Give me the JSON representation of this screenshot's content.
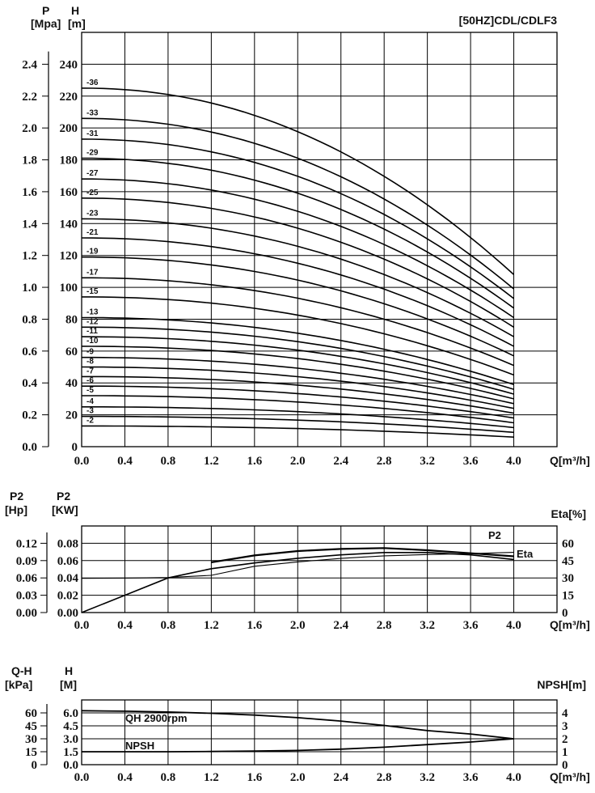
{
  "chart_data": [
    {
      "type": "line",
      "title": "[50HZ]CDL/CDLF3",
      "x_title": "Q[m³/h]",
      "y_titles": {
        "P": "P",
        "P_unit": "[Mpa]",
        "H": "H",
        "H_unit": "[m]"
      },
      "x_ticks": [
        "0.0",
        "0.4",
        "0.8",
        "1.2",
        "1.6",
        "2.0",
        "2.4",
        "2.8",
        "3.2",
        "3.6",
        "4.0"
      ],
      "H_ticks": [
        "0",
        "20",
        "40",
        "60",
        "80",
        "100",
        "120",
        "140",
        "160",
        "180",
        "200",
        "220",
        "240"
      ],
      "P_ticks": [
        "0.0",
        "0.2",
        "0.4",
        "0.6",
        "0.8",
        "1.0",
        "1.2",
        "1.4",
        "1.6",
        "1.8",
        "2.0",
        "2.2",
        "2.4"
      ],
      "xlim": [
        0,
        4.4
      ],
      "ylim": [
        0,
        260
      ],
      "grid": true,
      "stage_shutoff_head": {
        "36": 225,
        "33": 206,
        "31": 193,
        "29": 181,
        "27": 168,
        "25": 156,
        "23": 143,
        "21": 131,
        "19": 119,
        "17": 106,
        "15": 94,
        "13": 81,
        "12": 75,
        "11": 69,
        "10": 63,
        "9": 56,
        "8": 50,
        "7": 44,
        "6": 38,
        "5": 32,
        "4": 25,
        "3": 19,
        "2": 13
      },
      "stage_end_head": {
        "36": 108,
        "33": 99,
        "31": 93,
        "29": 87,
        "27": 81,
        "25": 75,
        "23": 69,
        "21": 63,
        "19": 57,
        "17": 51,
        "15": 45,
        "13": 39,
        "12": 36,
        "11": 33,
        "10": 30,
        "9": 27,
        "8": 24,
        "7": 21,
        "6": 18,
        "5": 15,
        "4": 12,
        "3": 9,
        "2": 6
      },
      "series": [
        {
          "name": "-36",
          "stages": 36
        },
        {
          "name": "-33",
          "stages": 33
        },
        {
          "name": "-31",
          "stages": 31
        },
        {
          "name": "-29",
          "stages": 29
        },
        {
          "name": "-27",
          "stages": 27
        },
        {
          "name": "-25",
          "stages": 25
        },
        {
          "name": "-23",
          "stages": 23
        },
        {
          "name": "-21",
          "stages": 21
        },
        {
          "name": "-19",
          "stages": 19
        },
        {
          "name": "-17",
          "stages": 17
        },
        {
          "name": "-15",
          "stages": 15
        },
        {
          "name": "-13",
          "stages": 13
        },
        {
          "name": "-12",
          "stages": 12
        },
        {
          "name": "-11",
          "stages": 11
        },
        {
          "name": "-10",
          "stages": 10
        },
        {
          "name": "-9",
          "stages": 9
        },
        {
          "name": "-8",
          "stages": 8
        },
        {
          "name": "-7",
          "stages": 7
        },
        {
          "name": "-6",
          "stages": 6
        },
        {
          "name": "-5",
          "stages": 5
        },
        {
          "name": "-4",
          "stages": 4
        },
        {
          "name": "-3",
          "stages": 3
        },
        {
          "name": "-2",
          "stages": 2
        }
      ]
    },
    {
      "type": "line",
      "x_title": "Q[m³/h]",
      "y_titles": {
        "P2a": "P2",
        "P2a_unit": "[Hp]",
        "P2b": "P2",
        "P2b_unit": "[KW]",
        "Eta": "Eta[%]"
      },
      "x_ticks": [
        "0.0",
        "0.4",
        "0.8",
        "1.2",
        "1.6",
        "2.0",
        "2.4",
        "2.8",
        "3.2",
        "3.6",
        "4.0"
      ],
      "Hp_ticks": [
        "0.00",
        "0.03",
        "0.06",
        "0.09",
        "0.12"
      ],
      "KW_ticks": [
        "0.00",
        "0.02",
        "0.04",
        "0.06",
        "0.08"
      ],
      "Eta_ticks": [
        "0",
        "15",
        "30",
        "45",
        "60"
      ],
      "grid": true,
      "series": [
        {
          "name": "P2",
          "unit": "KW",
          "x": [
            0.0,
            0.4,
            0.8,
            1.2,
            1.6,
            2.0,
            2.4,
            2.8,
            3.2,
            3.6,
            4.0
          ],
          "y": [
            0.0395,
            0.0398,
            0.0405,
            0.043,
            0.0535,
            0.0585,
            0.0625,
            0.0655,
            0.067,
            0.068,
            0.0695
          ]
        },
        {
          "name": "P2-high-band",
          "unit": "KW",
          "x": [
            1.2,
            1.6,
            2.0,
            2.4,
            2.8,
            3.2,
            3.6,
            4.0
          ],
          "y": [
            0.058,
            0.066,
            0.071,
            0.0735,
            0.0745,
            0.072,
            0.0685,
            0.065
          ]
        },
        {
          "name": "Eta",
          "unit": "%",
          "x": [
            0.0,
            0.4,
            0.8,
            1.2,
            1.6,
            2.0,
            2.4,
            2.8,
            3.2,
            3.6,
            4.0
          ],
          "y": [
            0,
            15,
            30,
            38,
            43,
            47,
            50,
            52,
            52,
            50,
            46
          ]
        }
      ],
      "labels": [
        "P2",
        "Eta"
      ]
    },
    {
      "type": "line",
      "x_title": "Q[m³/h]",
      "y_titles": {
        "QH": "Q-H",
        "QH_unit": "[kPa]",
        "H": "H",
        "H_unit": "[M]",
        "NPSH": "NPSH[m]"
      },
      "x_ticks": [
        "0.0",
        "0.4",
        "0.8",
        "1.2",
        "1.6",
        "2.0",
        "2.4",
        "2.8",
        "3.2",
        "3.6",
        "4.0"
      ],
      "kPa_ticks": [
        "0",
        "15",
        "30",
        "45",
        "60"
      ],
      "M_ticks": [
        "0.0",
        "1.5",
        "3.0",
        "4.5",
        "6.0"
      ],
      "NPSH_ticks": [
        "0",
        "1",
        "2",
        "3",
        "4"
      ],
      "grid": true,
      "series": [
        {
          "name": "QH 2900rpm",
          "unit": "M",
          "x": [
            0.0,
            0.4,
            0.8,
            1.2,
            1.6,
            2.0,
            2.4,
            2.8,
            3.2,
            3.6,
            4.0
          ],
          "y": [
            6.25,
            6.2,
            6.1,
            5.95,
            5.75,
            5.45,
            5.05,
            4.55,
            3.95,
            3.55,
            3.0
          ]
        },
        {
          "name": "NPSH",
          "unit": "m",
          "x": [
            0.0,
            0.4,
            0.8,
            1.2,
            1.6,
            2.0,
            2.4,
            2.8,
            3.2,
            3.6,
            4.0
          ],
          "y": [
            1.0,
            1.0,
            1.0,
            1.02,
            1.05,
            1.1,
            1.2,
            1.35,
            1.55,
            1.75,
            2.0
          ]
        }
      ],
      "labels": [
        "QH 2900rpm",
        "NPSH"
      ]
    }
  ]
}
